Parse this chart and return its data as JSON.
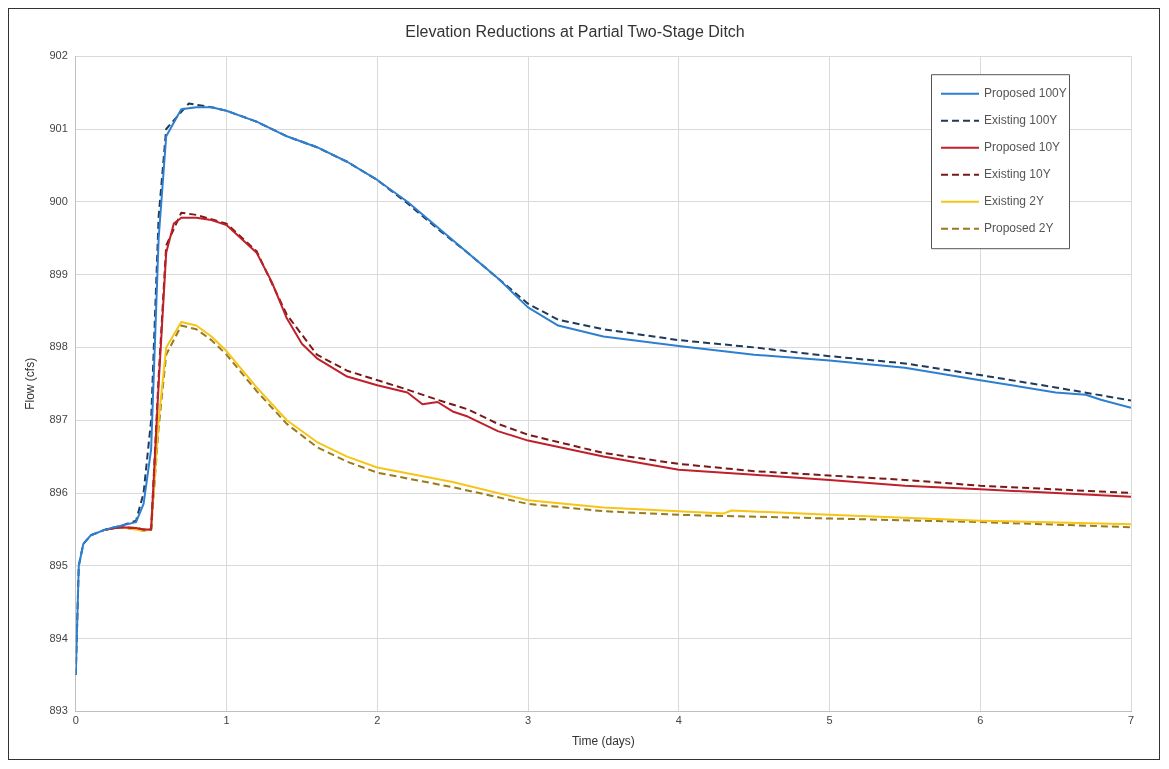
{
  "chart_data": {
    "type": "line",
    "title": "Elevation Reductions at Partial Two-Stage Ditch",
    "xlabel": "Time (days)",
    "ylabel": "Flow (cfs)",
    "xlim": [
      0,
      7
    ],
    "xticks": [
      0,
      1,
      2,
      3,
      4,
      5,
      6,
      7
    ],
    "ylim": [
      893,
      902
    ],
    "yticks": [
      893,
      894,
      895,
      896,
      897,
      898,
      899,
      900,
      901,
      902
    ],
    "grid": true,
    "legend": "top right",
    "marker": "none",
    "series": [
      {
        "name": "Proposed 100Y",
        "color": "#2e7fd0",
        "line_style": "solid",
        "x": [
          0,
          0.02,
          0.05,
          0.1,
          0.2,
          0.3,
          0.4,
          0.45,
          0.5,
          0.55,
          0.6,
          0.7,
          0.8,
          0.9,
          1.0,
          1.2,
          1.4,
          1.6,
          1.8,
          2.0,
          2.2,
          2.4,
          2.6,
          2.8,
          3.0,
          3.2,
          3.5,
          4,
          4.5,
          5,
          5.5,
          6,
          6.5,
          6.7,
          6.8,
          7
        ],
        "values": [
          893.5,
          895.0,
          895.3,
          895.42,
          895.5,
          895.55,
          895.6,
          895.85,
          896.6,
          899.5,
          900.9,
          901.27,
          901.3,
          901.3,
          901.25,
          901.1,
          900.9,
          900.75,
          900.55,
          900.3,
          900.0,
          899.65,
          899.3,
          898.95,
          898.55,
          898.3,
          898.15,
          898.02,
          897.9,
          897.82,
          897.72,
          897.55,
          897.38,
          897.35,
          897.28,
          897.17
        ]
      },
      {
        "name": "Existing 100Y",
        "color": "#1f3a5a",
        "line_style": "dashed",
        "x": [
          0,
          0.02,
          0.05,
          0.1,
          0.2,
          0.3,
          0.4,
          0.45,
          0.5,
          0.55,
          0.6,
          0.75,
          0.9,
          1.0,
          1.2,
          1.4,
          1.6,
          1.8,
          2.0,
          2.2,
          2.4,
          2.6,
          2.8,
          3.0,
          3.2,
          3.5,
          4,
          4.5,
          5,
          5.5,
          6,
          6.5,
          7
        ],
        "values": [
          893.5,
          895.0,
          895.3,
          895.42,
          895.5,
          895.55,
          895.62,
          896.0,
          897.0,
          899.8,
          901.0,
          901.35,
          901.3,
          901.25,
          901.1,
          900.9,
          900.75,
          900.55,
          900.3,
          899.98,
          899.63,
          899.3,
          898.95,
          898.6,
          898.38,
          898.25,
          898.1,
          898.0,
          897.88,
          897.78,
          897.62,
          897.45,
          897.27
        ]
      },
      {
        "name": "Proposed 10Y",
        "color": "#c0202a",
        "line_style": "solid",
        "x": [
          0.2,
          0.3,
          0.4,
          0.45,
          0.5,
          0.55,
          0.6,
          0.65,
          0.7,
          0.8,
          0.9,
          1.0,
          1.2,
          1.3,
          1.4,
          1.5,
          1.6,
          1.8,
          2.0,
          2.2,
          2.3,
          2.4,
          2.5,
          2.6,
          2.8,
          3.0,
          3.5,
          4,
          4.5,
          5,
          5.5,
          6,
          7
        ],
        "values": [
          895.5,
          895.53,
          895.52,
          895.5,
          895.5,
          897.5,
          899.3,
          899.7,
          899.78,
          899.78,
          899.75,
          899.68,
          899.3,
          898.9,
          898.4,
          898.05,
          897.85,
          897.6,
          897.48,
          897.38,
          897.22,
          897.25,
          897.12,
          897.05,
          896.85,
          896.72,
          896.5,
          896.32,
          896.25,
          896.18,
          896.1,
          896.05,
          895.95
        ]
      },
      {
        "name": "Existing 10Y",
        "color": "#7a1818",
        "line_style": "dashed",
        "x": [
          0.2,
          0.3,
          0.4,
          0.45,
          0.5,
          0.55,
          0.6,
          0.7,
          0.8,
          1.0,
          1.2,
          1.4,
          1.6,
          1.8,
          2.0,
          2.2,
          2.4,
          2.6,
          2.8,
          3.0,
          3.5,
          4,
          4.5,
          5,
          5.5,
          6,
          7
        ],
        "values": [
          895.5,
          895.53,
          895.52,
          895.5,
          895.5,
          897.6,
          899.4,
          899.85,
          899.82,
          899.7,
          899.32,
          898.45,
          897.9,
          897.68,
          897.55,
          897.42,
          897.28,
          897.15,
          896.95,
          896.8,
          896.55,
          896.4,
          896.3,
          896.24,
          896.18,
          896.1,
          896.0
        ]
      },
      {
        "name": "Existing 2Y",
        "color": "#f5c518",
        "line_style": "solid",
        "x": [
          0.2,
          0.3,
          0.4,
          0.45,
          0.5,
          0.55,
          0.6,
          0.7,
          0.8,
          0.9,
          1.0,
          1.2,
          1.4,
          1.6,
          1.8,
          2.0,
          2.5,
          3.0,
          3.5,
          4,
          4.3,
          4.35,
          5,
          6,
          7
        ],
        "values": [
          895.5,
          895.53,
          895.5,
          895.48,
          895.5,
          897.0,
          898.0,
          898.35,
          898.3,
          898.15,
          897.95,
          897.45,
          897.0,
          896.7,
          896.5,
          896.35,
          896.15,
          895.9,
          895.8,
          895.75,
          895.72,
          895.76,
          895.7,
          895.62,
          895.57
        ]
      },
      {
        "name": "Proposed 2Y",
        "color": "#9a7a1a",
        "line_style": "dashed",
        "x": [
          0.2,
          0.3,
          0.4,
          0.45,
          0.5,
          0.55,
          0.6,
          0.7,
          0.8,
          0.9,
          1.0,
          1.2,
          1.4,
          1.6,
          1.8,
          2.0,
          2.5,
          3.0,
          3.5,
          4,
          5,
          6,
          7
        ],
        "values": [
          895.5,
          895.53,
          895.5,
          895.48,
          895.5,
          896.9,
          897.9,
          898.3,
          898.25,
          898.1,
          897.9,
          897.4,
          896.95,
          896.63,
          896.43,
          896.28,
          896.08,
          895.85,
          895.75,
          895.7,
          895.65,
          895.6,
          895.53
        ]
      }
    ]
  }
}
